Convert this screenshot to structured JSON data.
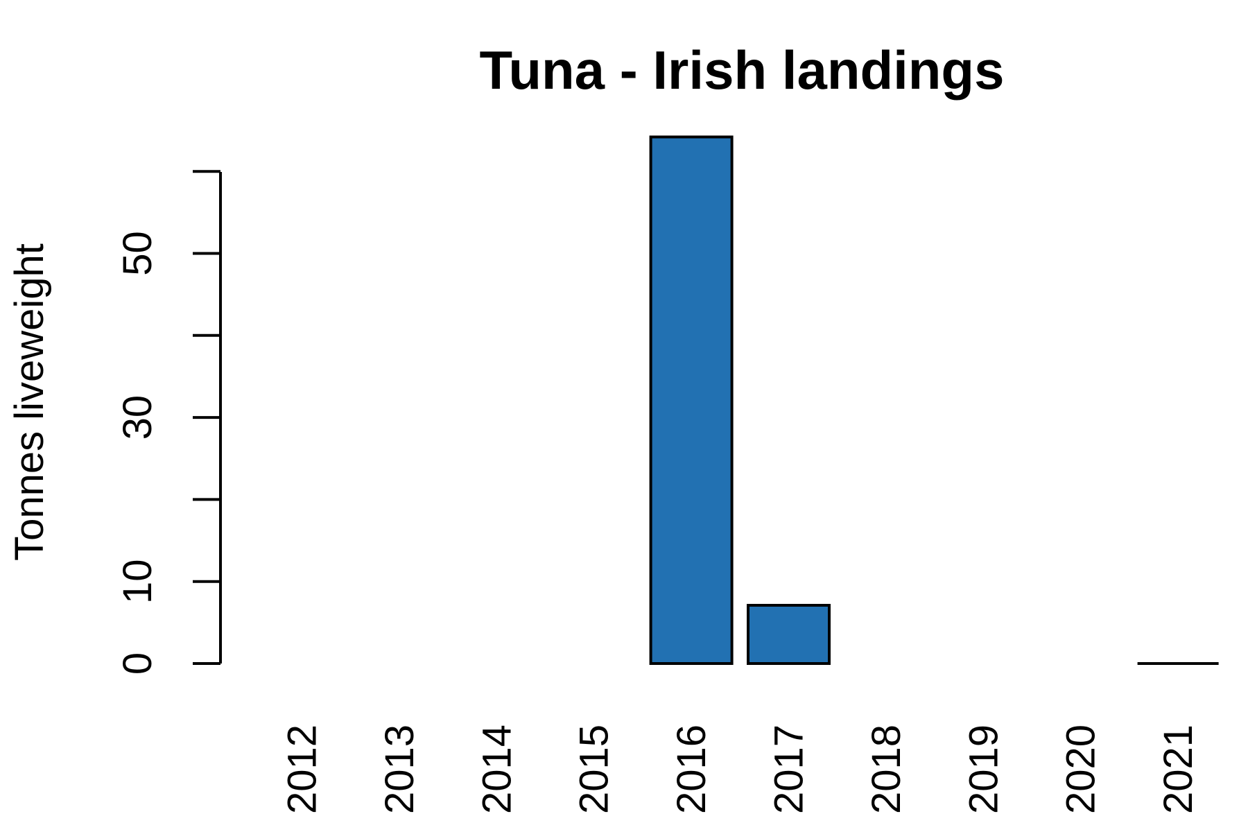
{
  "chart_data": {
    "type": "bar",
    "title": "Tuna - Irish landings",
    "xlabel": "",
    "ylabel": "Tonnes liveweight",
    "categories": [
      "2012",
      "2013",
      "2014",
      "2015",
      "2016",
      "2017",
      "2018",
      "2019",
      "2020",
      "2021"
    ],
    "values": [
      0,
      0,
      0,
      0,
      64.2,
      7.1,
      0,
      0,
      0,
      0.1
    ],
    "y_ticks": [
      0,
      10,
      20,
      30,
      40,
      50,
      60
    ],
    "y_tick_labels": [
      "0",
      "10",
      "",
      "30",
      "",
      "50",
      ""
    ],
    "ylim": [
      0,
      60
    ],
    "grid": false,
    "legend": "none",
    "bar_color": "#2271b2",
    "edge_color": "#000000"
  }
}
